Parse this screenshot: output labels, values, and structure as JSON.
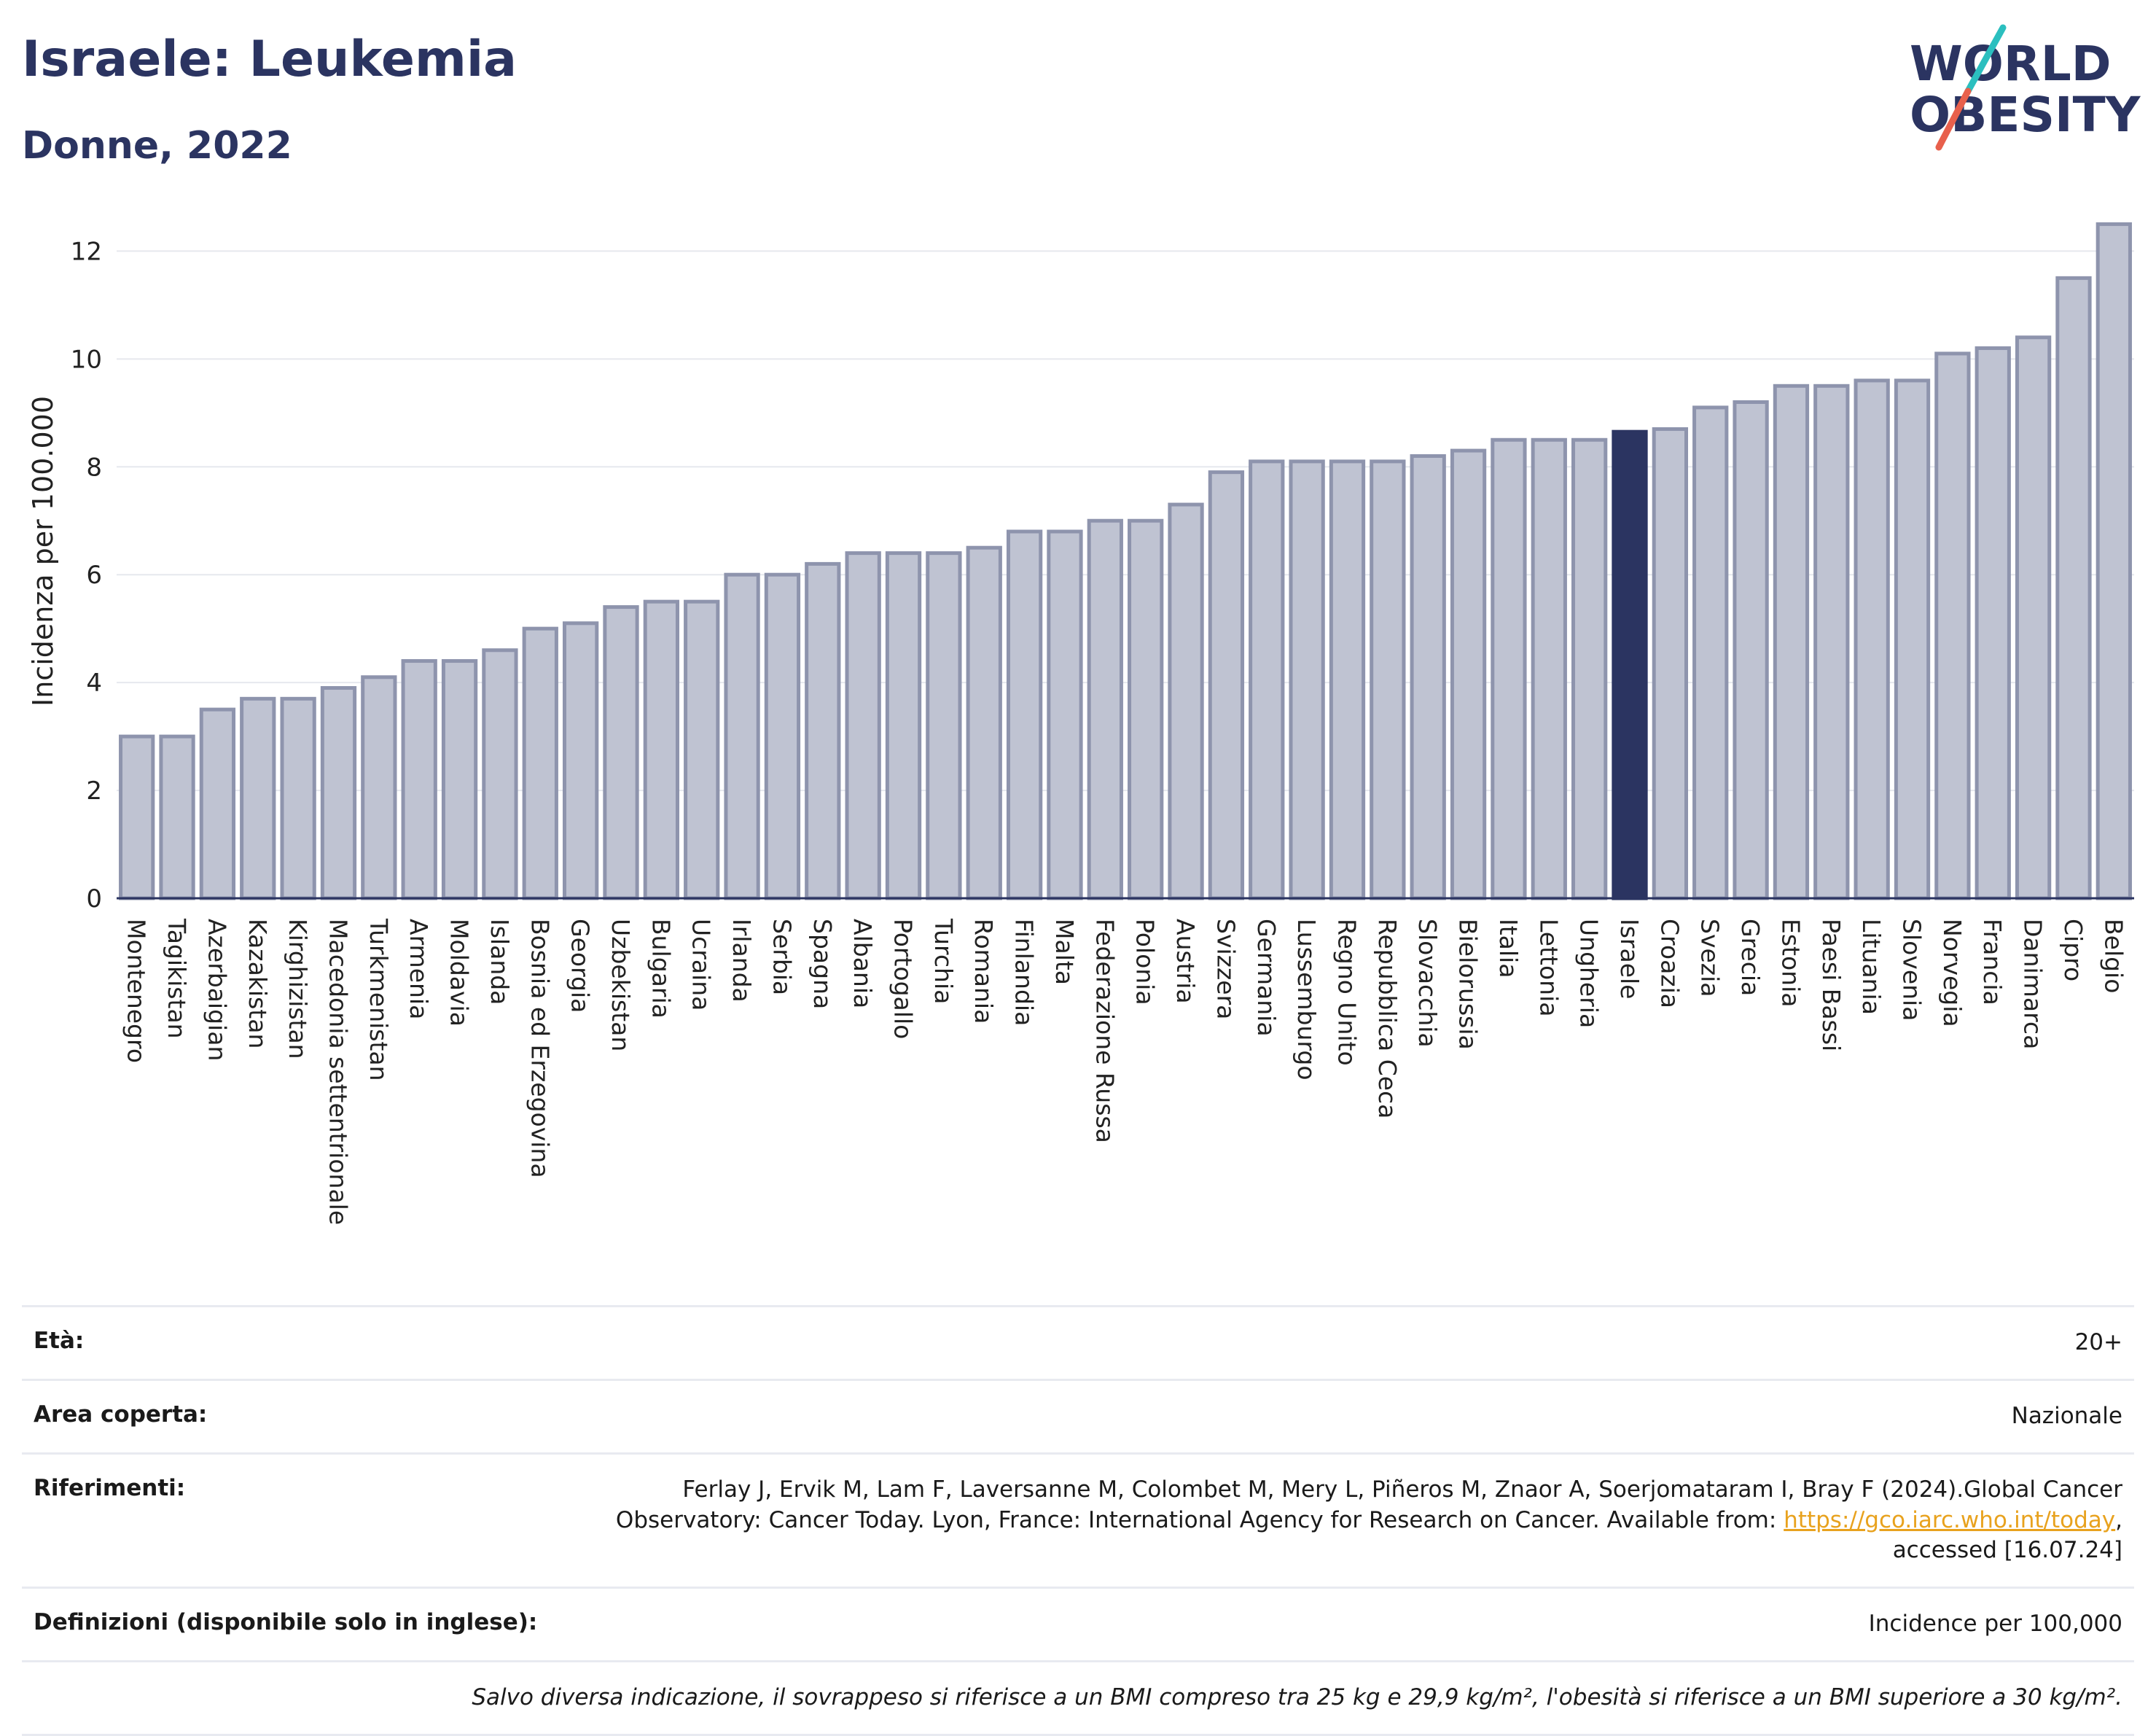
{
  "header": {
    "title": "Israele: Leukemia",
    "subtitle": "Donne, 2022",
    "logo_line1": "WORLD",
    "logo_line2": "OBESITY"
  },
  "colors": {
    "bar": "#bfc3d2",
    "bar_border": "#8e94ad",
    "highlight": "#2b3461",
    "title": "#2b3461",
    "logo_slash_teal": "#2bbfbf",
    "logo_slash_red": "#e8604c"
  },
  "chart_data": {
    "type": "bar",
    "title": "Israele: Leukemia",
    "subtitle": "Donne, 2022",
    "ylabel": "Incidenza per 100.000",
    "xlabel": "",
    "ylim": [
      0,
      12.6
    ],
    "yticks": [
      0,
      2,
      4,
      6,
      8,
      10,
      12
    ],
    "grid": true,
    "highlight": "Israele",
    "categories": [
      "Montenegro",
      "Tagikistan",
      "Azerbaigian",
      "Kazakistan",
      "Kirghizistan",
      "Macedonia settentrionale",
      "Turkmenistan",
      "Armenia",
      "Moldavia",
      "Islanda",
      "Bosnia ed Erzegovina",
      "Georgia",
      "Uzbekistan",
      "Bulgaria",
      "Ucraina",
      "Irlanda",
      "Serbia",
      "Spagna",
      "Albania",
      "Portogallo",
      "Turchia",
      "Romania",
      "Finlandia",
      "Malta",
      "Federazione Russa",
      "Polonia",
      "Austria",
      "Svizzera",
      "Germania",
      "Lussemburgo",
      "Regno Unito",
      "Repubblica Ceca",
      "Slovacchia",
      "Bielorussia",
      "Italia",
      "Lettonia",
      "Ungheria",
      "Israele",
      "Croazia",
      "Svezia",
      "Grecia",
      "Estonia",
      "Paesi Bassi",
      "Lituania",
      "Slovenia",
      "Norvegia",
      "Francia",
      "Danimarca",
      "Cipro",
      "Belgio"
    ],
    "values": [
      3.0,
      3.0,
      3.5,
      3.7,
      3.7,
      3.9,
      4.1,
      4.4,
      4.4,
      4.6,
      5.0,
      5.1,
      5.4,
      5.5,
      5.5,
      6.0,
      6.0,
      6.2,
      6.4,
      6.4,
      6.4,
      6.5,
      6.8,
      6.8,
      7.0,
      7.0,
      7.3,
      7.9,
      8.1,
      8.1,
      8.1,
      8.1,
      8.2,
      8.3,
      8.5,
      8.5,
      8.5,
      8.65,
      8.7,
      9.1,
      9.2,
      9.5,
      9.5,
      9.6,
      9.6,
      10.1,
      10.2,
      10.4,
      11.5,
      12.5
    ]
  },
  "info": {
    "age_label": "Età:",
    "age_value": "20+",
    "area_label": "Area coperta:",
    "area_value": "Nazionale",
    "refs_label": "Riferimenti:",
    "refs_text1": "Ferlay J, Ervik M, Lam F, Laversanne M, Colombet M, Mery L, Piñeros M, Znaor A, Soerjomataram I, Bray F (2024).Global Cancer",
    "refs_text2": "Observatory: Cancer Today. Lyon, France: International Agency for Research on Cancer. Available from: ",
    "refs_link": "https://gco.iarc.who.int/today",
    "refs_text3": "accessed [16.07.24]",
    "def_label": "Definizioni (disponibile solo in inglese):",
    "def_value": "Incidence per 100,000",
    "note": "Salvo diversa indicazione, il sovrappeso si riferisce a un BMI compreso tra 25 kg e 29,9 kg/m², l'obesità si riferisce a un BMI superiore a 30 kg/m²."
  }
}
